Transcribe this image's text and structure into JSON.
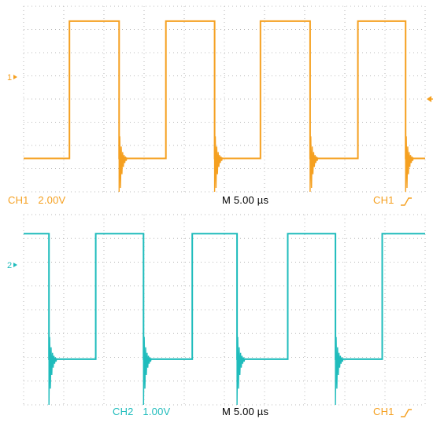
{
  "colors": {
    "ch1": "#f5a020",
    "ch2": "#1fbcbc",
    "grid": "#b8b8b8",
    "text": "#000000",
    "background": "#ffffff"
  },
  "panel1": {
    "channel_label": "CH1",
    "scale": "2.00V",
    "timebase": "M 5.00 µs",
    "trigger_label": "CH1",
    "trigger_icon": "rising-edge-icon",
    "marker": "1"
  },
  "panel2": {
    "channel_label": "CH2",
    "scale": "1.00V",
    "timebase": "M 5.00 µs",
    "trigger_label": "CH1",
    "trigger_icon": "rising-edge-icon",
    "marker": "2"
  },
  "chart_data": [
    {
      "type": "line",
      "series": [
        {
          "name": "CH1",
          "x": [
            0.0,
            4.7,
            4.7,
            9.8,
            9.8,
            14.6,
            14.6,
            19.6,
            19.6,
            24.3,
            24.3,
            29.4,
            29.4,
            34.3,
            34.3,
            39.2,
            39.2,
            41.2
          ],
          "y": [
            -1.2,
            -1.2,
            6.2,
            6.2,
            -1.2,
            -1.2,
            6.2,
            6.2,
            -1.2,
            -1.2,
            6.2,
            6.2,
            -1.2,
            -1.2,
            6.2,
            6.2,
            -1.2,
            -1.2
          ]
        }
      ],
      "xlim": [
        0,
        41.2
      ],
      "ylim": [
        -3.0,
        7.0
      ]
    },
    {
      "type": "line",
      "series": [
        {
          "name": "CH2",
          "x": [
            0.0,
            2.6,
            2.6,
            7.4,
            7.4,
            12.3,
            12.3,
            17.3,
            17.3,
            21.9,
            21.9,
            27.1,
            27.1,
            32.0,
            32.0,
            36.8,
            36.8,
            41.2
          ],
          "y": [
            3.0,
            3.0,
            -0.3,
            -0.3,
            3.0,
            3.0,
            -0.3,
            -0.3,
            3.0,
            3.0,
            -0.3,
            -0.3,
            3.0,
            3.0,
            -0.3,
            -0.3,
            3.0,
            3.0
          ]
        }
      ],
      "xlim": [
        0,
        41.2
      ],
      "ylim": [
        -1.5,
        3.5
      ]
    }
  ]
}
